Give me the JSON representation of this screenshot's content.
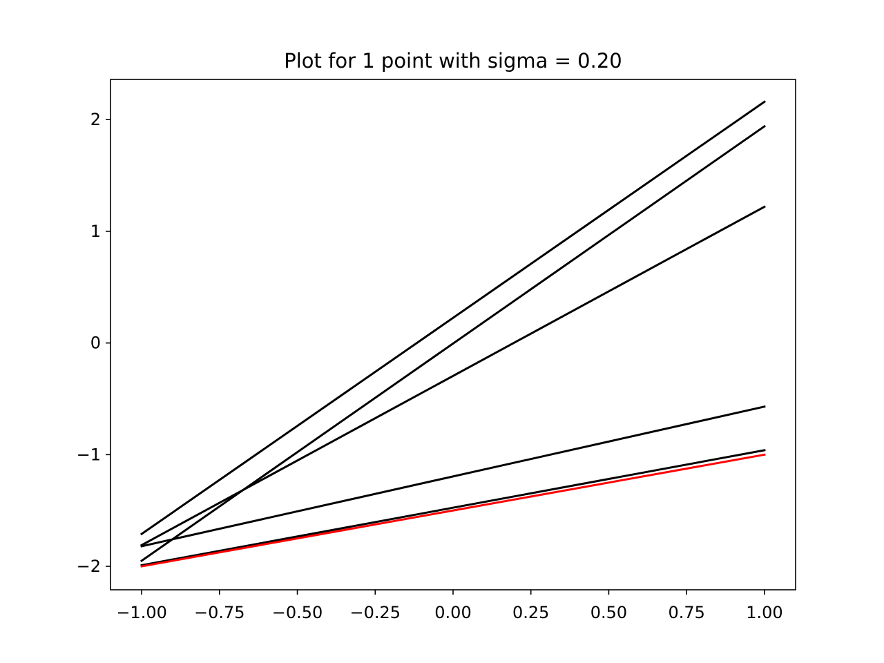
{
  "chart_data": {
    "type": "line",
    "title": "Plot for 1 point with sigma = 0.20",
    "xlabel": "",
    "ylabel": "",
    "xlim": [
      -1.1,
      1.1
    ],
    "ylim": [
      -2.21,
      2.36
    ],
    "x_ticks": [
      -1.0,
      -0.75,
      -0.5,
      -0.25,
      0.0,
      0.25,
      0.5,
      0.75,
      1.0
    ],
    "x_tick_labels": [
      "−1.00",
      "−0.75",
      "−0.50",
      "−0.25",
      "0.00",
      "0.25",
      "0.50",
      "0.75",
      "1.00"
    ],
    "y_ticks": [
      -2,
      -1,
      0,
      1,
      2
    ],
    "y_tick_labels": [
      "−2",
      "−1",
      "0",
      "1",
      "2"
    ],
    "grid": false,
    "legend": "none",
    "series": [
      {
        "color": "#000000",
        "x": [
          -1.0,
          1.0
        ],
        "y": [
          -1.71,
          2.16
        ]
      },
      {
        "color": "#000000",
        "x": [
          -1.0,
          1.0
        ],
        "y": [
          -1.95,
          1.94
        ]
      },
      {
        "color": "#000000",
        "x": [
          -1.0,
          1.0
        ],
        "y": [
          -1.81,
          1.22
        ]
      },
      {
        "color": "#000000",
        "x": [
          -1.0,
          1.0
        ],
        "y": [
          -1.82,
          -0.57
        ]
      },
      {
        "color": "#000000",
        "x": [
          -1.0,
          1.0
        ],
        "y": [
          -1.99,
          -0.96
        ]
      },
      {
        "color": "#ff0000",
        "x": [
          -1.0,
          1.0
        ],
        "y": [
          -2.0,
          -1.0
        ]
      }
    ]
  }
}
